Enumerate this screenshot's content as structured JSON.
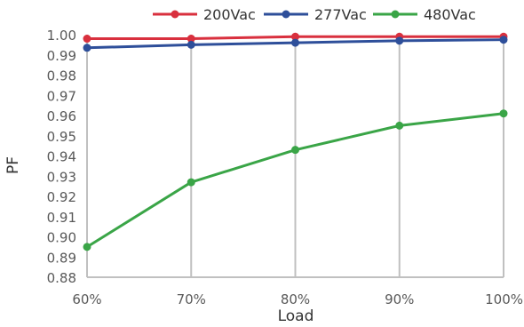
{
  "chart_data": {
    "type": "line",
    "title": "",
    "xlabel": "Load",
    "ylabel": "PF",
    "categories": [
      "60%",
      "70%",
      "80%",
      "90%",
      "100%"
    ],
    "ylim": [
      0.88,
      1.0
    ],
    "y_ticks": [
      "0.88",
      "0.89",
      "0.90",
      "0.91",
      "0.92",
      "0.93",
      "0.94",
      "0.95",
      "0.96",
      "0.97",
      "0.98",
      "0.99",
      "1.00"
    ],
    "grid": "vertical",
    "legend_position": "top",
    "series": [
      {
        "name": "200Vac",
        "color": "#d9303e",
        "values": [
          0.998,
          0.998,
          0.999,
          0.999,
          0.999
        ]
      },
      {
        "name": "277Vac",
        "color": "#2e4f9a",
        "values": [
          0.9935,
          0.995,
          0.996,
          0.997,
          0.9975
        ]
      },
      {
        "name": "480Vac",
        "color": "#3aa547",
        "values": [
          0.895,
          0.927,
          0.943,
          0.955,
          0.961
        ]
      }
    ]
  }
}
